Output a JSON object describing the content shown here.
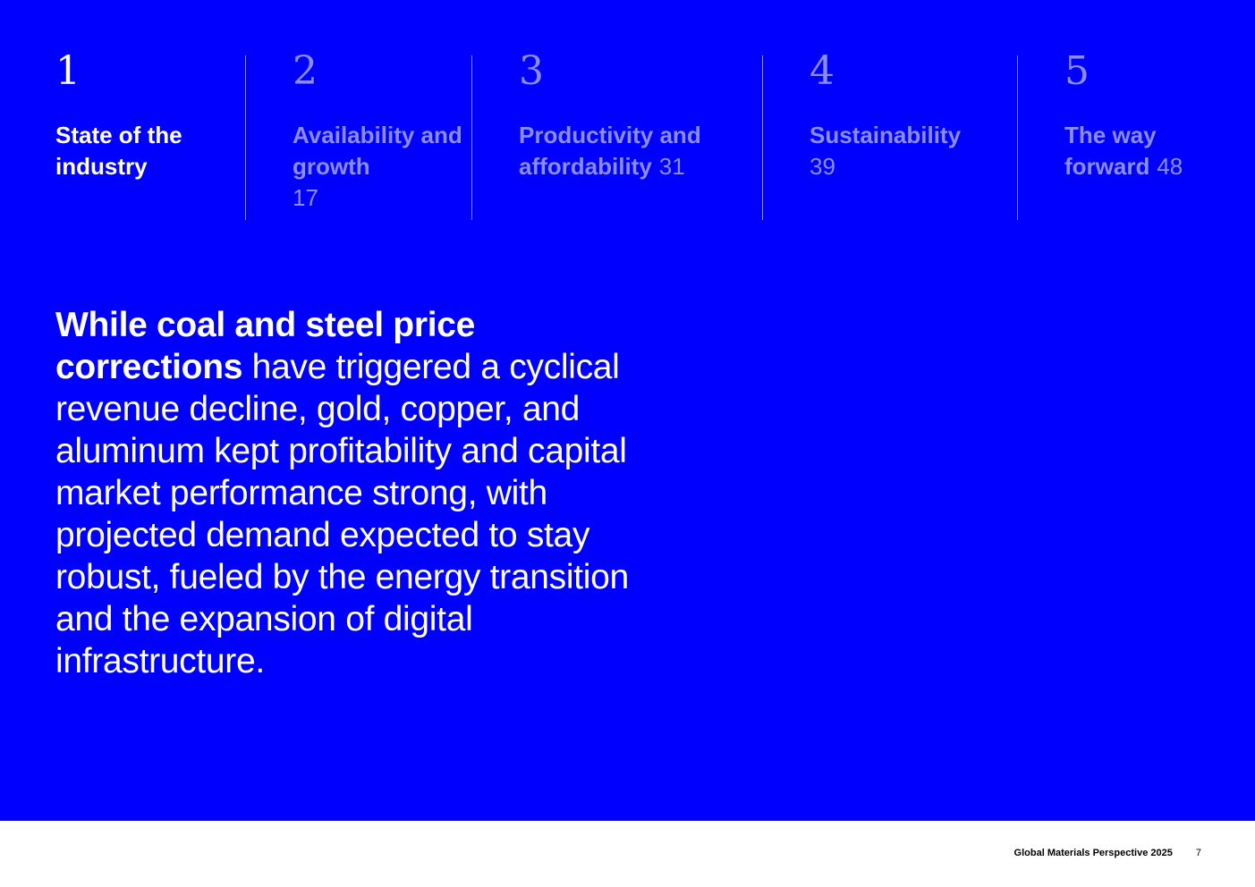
{
  "nav": {
    "items": [
      {
        "number": "1",
        "label": "State of the industry",
        "page": ""
      },
      {
        "number": "2",
        "label": "Availability and growth",
        "page": "17"
      },
      {
        "number": "3",
        "label": "Productivity and affordability",
        "page": "31"
      },
      {
        "number": "4",
        "label": "Sustainability",
        "page": "39"
      },
      {
        "number": "5",
        "label": "The way forward",
        "page": "48"
      }
    ]
  },
  "headline": {
    "lead": "While coal and steel price corrections",
    "rest": " have triggered a cyclical revenue decline, gold, copper, and aluminum kept profitability and capital market performance strong, with projected demand expected to stay robust, fueled by the energy transition and the expansion of digital infrastructure."
  },
  "footer": {
    "publication": "Global Materials Perspective 2025",
    "page_number": "7"
  },
  "colors": {
    "background": "#0000ff",
    "active": "#ffffff",
    "inactive": "#8a8cff"
  }
}
